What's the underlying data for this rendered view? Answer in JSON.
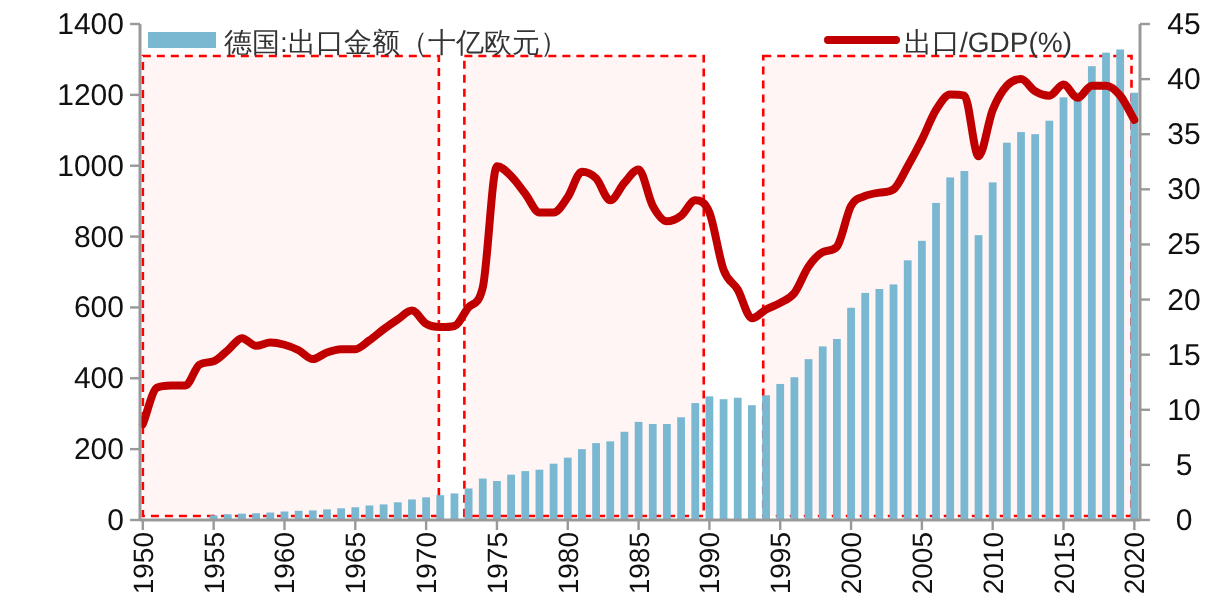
{
  "chart_data": {
    "type": "bar",
    "x": [
      1950,
      1951,
      1952,
      1953,
      1954,
      1955,
      1956,
      1957,
      1958,
      1959,
      1960,
      1961,
      1962,
      1963,
      1964,
      1965,
      1966,
      1967,
      1968,
      1969,
      1970,
      1971,
      1972,
      1973,
      1974,
      1975,
      1976,
      1977,
      1978,
      1979,
      1980,
      1981,
      1982,
      1983,
      1984,
      1985,
      1986,
      1987,
      1988,
      1989,
      1990,
      1991,
      1992,
      1993,
      1994,
      1995,
      1996,
      1997,
      1998,
      1999,
      2000,
      2001,
      2002,
      2003,
      2004,
      2005,
      2006,
      2007,
      2008,
      2009,
      2010,
      2011,
      2012,
      2013,
      2014,
      2015,
      2016,
      2017,
      2018,
      2019,
      2020
    ],
    "series": [
      {
        "name": "德国:出口金额（十亿欧元）",
        "type": "bar",
        "axis": "y",
        "color": "#7ab8d2",
        "values": [
          null,
          null,
          null,
          null,
          null,
          13,
          16,
          18,
          19,
          21,
          24,
          26,
          27,
          30,
          33,
          36,
          41,
          44,
          50,
          58,
          64,
          70,
          75,
          89,
          117,
          110,
          128,
          138,
          142,
          159,
          176,
          200,
          217,
          222,
          249,
          277,
          271,
          271,
          290,
          330,
          349,
          341,
          345,
          324,
          352,
          384,
          403,
          454,
          490,
          511,
          599,
          641,
          652,
          665,
          733,
          788,
          895,
          967,
          985,
          804,
          953,
          1065,
          1095,
          1089,
          1127,
          1193,
          1207,
          1281,
          1319,
          1328,
          1206
        ]
      },
      {
        "name": "出口/GDP(%)",
        "type": "line",
        "axis": "y2",
        "color": "#c00000",
        "values": [
          8.7,
          12.0,
          12.2,
          12.2,
          14.1,
          14.4,
          15.4,
          16.5,
          15.8,
          16.1,
          15.9,
          15.4,
          14.6,
          15.2,
          15.5,
          15.5,
          16.3,
          17.3,
          18.2,
          19.0,
          17.8,
          17.5,
          17.6,
          19.3,
          21.1,
          32.1,
          31.2,
          29.6,
          27.9,
          27.9,
          29.3,
          31.6,
          31.0,
          29.0,
          30.6,
          31.8,
          28.5,
          27.1,
          27.6,
          29.0,
          27.9,
          22.7,
          20.9,
          18.3,
          19.1,
          19.7,
          20.6,
          23.0,
          24.3,
          24.8,
          28.5,
          29.4,
          29.7,
          30.0,
          32.1,
          34.5,
          37.2,
          38.6,
          38.5,
          33.0,
          37.2,
          39.4,
          40.0,
          38.9,
          38.5,
          39.5,
          38.3,
          39.4,
          39.4,
          38.5,
          36.3
        ]
      }
    ],
    "xlim": [
      1949.8,
      2020.4
    ],
    "xticks": [
      1950,
      1955,
      1960,
      1965,
      1970,
      1975,
      1980,
      1985,
      1990,
      1995,
      2000,
      2005,
      2010,
      2015,
      2020
    ],
    "ylim": [
      0,
      1400
    ],
    "yticks": [
      0,
      200,
      400,
      600,
      800,
      1000,
      1200,
      1400
    ],
    "y2lim": [
      0,
      45
    ],
    "y2ticks": [
      0,
      5,
      10,
      15,
      20,
      25,
      30,
      35,
      40,
      45
    ],
    "bands": [
      {
        "axis": "x",
        "from": 1950,
        "to": 1970.9,
        "color": "#ff0000"
      },
      {
        "axis": "x",
        "from": 1972.7,
        "to": 1989.6,
        "color": "#ff0000"
      },
      {
        "axis": "x",
        "from": 1993.8,
        "to": 2019.8,
        "color": "#ff0000"
      }
    ],
    "legend": "top"
  }
}
